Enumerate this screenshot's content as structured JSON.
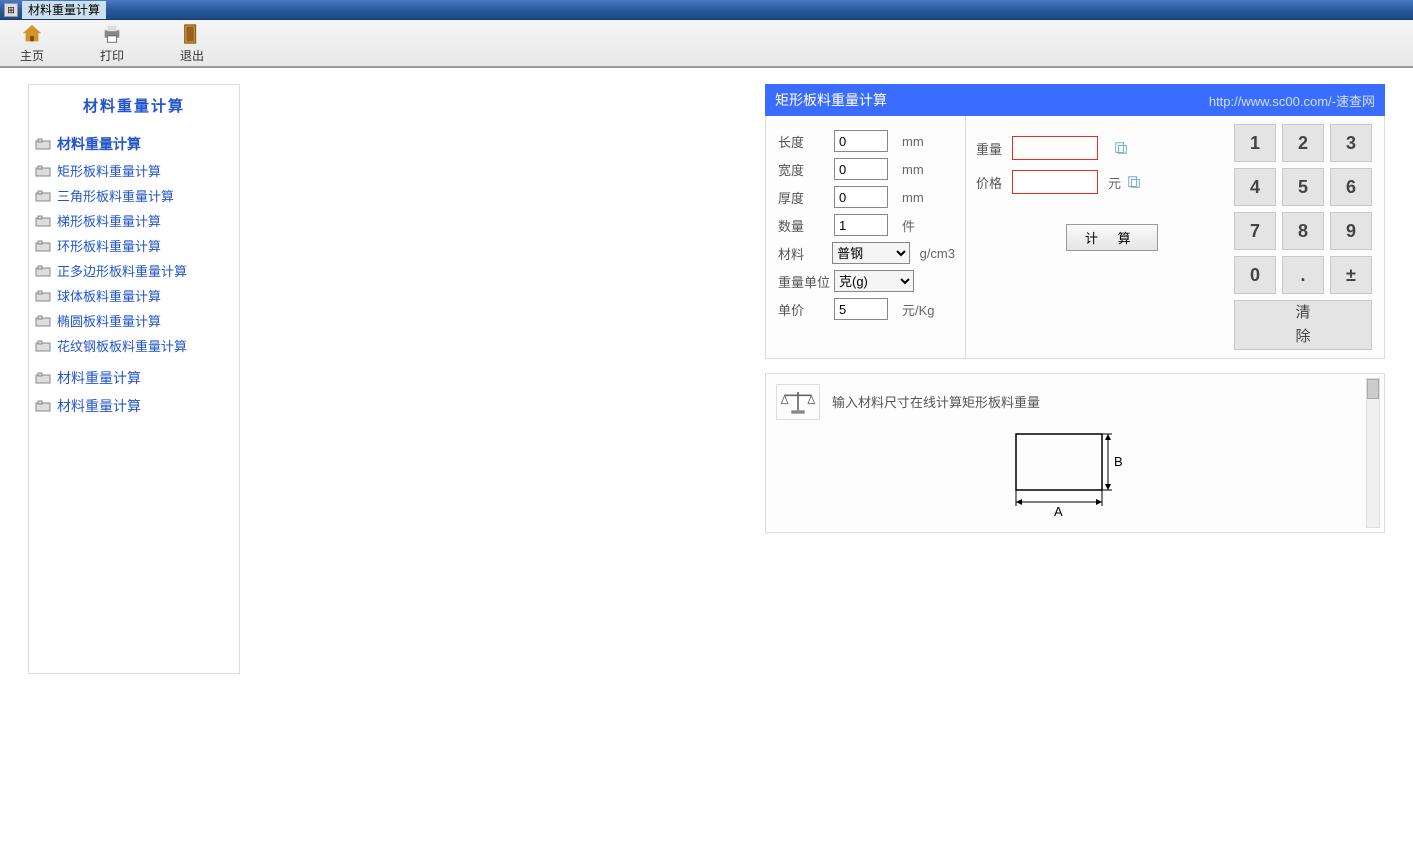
{
  "window": {
    "title": "材料重量计算"
  },
  "toolbar": [
    {
      "name": "home-button",
      "label": "主页",
      "icon": "home"
    },
    {
      "name": "print-button",
      "label": "打印",
      "icon": "print"
    },
    {
      "name": "exit-button",
      "label": "退出",
      "icon": "exit"
    }
  ],
  "sidebar": {
    "title": "材料重量计算",
    "groups": [
      {
        "header": "材料重量计算",
        "bold": true,
        "items": [
          "矩形板料重量计算",
          "三角形板料重量计算",
          "梯形板料重量计算",
          "环形板料重量计算",
          "正多边形板料重量计算",
          "球体板料重量计算",
          "椭圆板料重量计算",
          "花纹钢板板料重量计算"
        ]
      },
      {
        "header": "材料重量计算",
        "bold": false,
        "items": []
      },
      {
        "header": "材料重量计算",
        "bold": false,
        "items": []
      }
    ]
  },
  "calculator": {
    "title": "矩形板料重量计算",
    "url_text": "http://www.sc00.com/-速查网",
    "inputs": {
      "length": {
        "label": "长度",
        "value": "0",
        "unit": "mm"
      },
      "width": {
        "label": "宽度",
        "value": "0",
        "unit": "mm"
      },
      "thickness": {
        "label": "厚度",
        "value": "0",
        "unit": "mm"
      },
      "quantity": {
        "label": "数量",
        "value": "1",
        "unit": "件"
      },
      "material": {
        "label": "材料",
        "value": "普钢",
        "unit": "g/cm3"
      },
      "weight_unit": {
        "label": "重量单位",
        "value": "克(g)"
      },
      "unit_price": {
        "label": "单价",
        "value": "5",
        "unit": "元/Kg"
      }
    },
    "results": {
      "weight": {
        "label": "重量",
        "value": "",
        "unit": ""
      },
      "price": {
        "label": "价格",
        "value": "",
        "unit": "元"
      }
    },
    "calc_button": "计 算",
    "keypad": [
      "1",
      "2",
      "3",
      "4",
      "5",
      "6",
      "7",
      "8",
      "9",
      "0",
      ".",
      "±"
    ],
    "clear_button": "清\n除"
  },
  "info": {
    "text": "输入材料尺寸在线计算矩形板料重量",
    "diagram": {
      "width_label": "A",
      "height_label": "B"
    }
  },
  "colors": {
    "link": "#2255cc",
    "header_bg": "#3a6cff",
    "result_border": "#e03020"
  }
}
